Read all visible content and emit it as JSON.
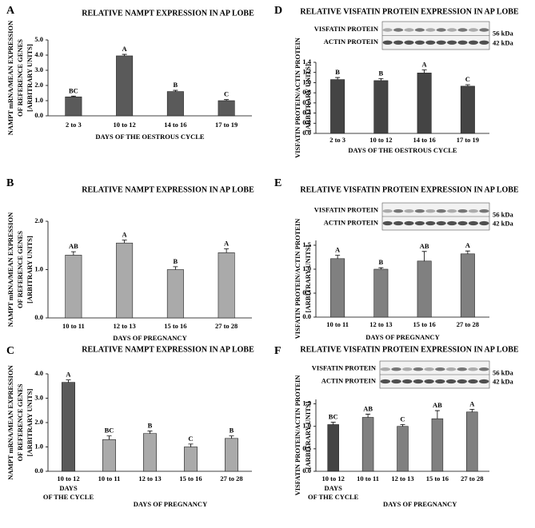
{
  "chart_data": [
    {
      "type": "bar",
      "panel": "A",
      "title": "RELATIVE NAMPT EXPRESSION IN AP LOBE",
      "ylabel_lines": [
        "NAMPT mRNA/MEAN EXPRESSION",
        "OF REFERENCE GENES",
        "[ARBITRARY UNITS]"
      ],
      "xlabel": "DAYS OF THE OESTROUS CYCLE",
      "categories": [
        "2 to 3",
        "10 to 12",
        "14 to 16",
        "17 to 19"
      ],
      "values": [
        1.25,
        3.95,
        1.6,
        1.0
      ],
      "errors": [
        0.05,
        0.1,
        0.08,
        0.07
      ],
      "letters": [
        "BC",
        "A",
        "B",
        "C"
      ],
      "color": "#5a5a5a",
      "ylim": [
        0,
        5
      ],
      "yticks": [
        {
          "value": 0,
          "label": "0.0"
        },
        {
          "value": 1,
          "label": "1.0"
        },
        {
          "value": 2,
          "label": "2.0"
        },
        {
          "value": 3,
          "label": "3.0"
        },
        {
          "value": 4,
          "label": "4.0"
        },
        {
          "value": 5,
          "label": "5.0"
        }
      ]
    },
    {
      "type": "bar",
      "panel": "B",
      "title": "RELATIVE NAMPT EXPRESSION IN AP LOBE",
      "ylabel_lines": [
        "NAMPT mRNA/MEAN EXPRESSION",
        "OF REFERENCE GENES",
        "[ARBITRARY UNITS]"
      ],
      "xlabel": "DAYS OF PREGNANCY",
      "categories": [
        "10 to 11",
        "12 to 13",
        "15 to 16",
        "27 to 28"
      ],
      "values": [
        1.3,
        1.55,
        1.0,
        1.35
      ],
      "errors": [
        0.07,
        0.06,
        0.06,
        0.08
      ],
      "letters": [
        "AB",
        "A",
        "B",
        "A"
      ],
      "color": "#aaaaaa",
      "ylim": [
        0,
        2
      ],
      "yticks": [
        {
          "value": 0,
          "label": "0.0"
        },
        {
          "value": 1,
          "label": "1.0"
        },
        {
          "value": 2,
          "label": "2.0"
        }
      ]
    },
    {
      "type": "bar",
      "panel": "C",
      "title": "RELATIVE NAMPT EXPRESSION IN AP LOBE",
      "ylabel_lines": [
        "NAMPT mRNA/MEAN EXPRESSION",
        "OF REFERENCE GENES",
        "[ARBITRARY UNITS]"
      ],
      "categories": [
        "10 to 12",
        "10 to 11",
        "12 to 13",
        "15 to 16",
        "27 to 28"
      ],
      "x_groups": [
        {
          "label_lines": [
            "DAYS",
            "OF THE CYCLE"
          ],
          "count": 1
        },
        {
          "label_lines": [
            "DAYS OF PREGNANCY"
          ],
          "count": 4
        }
      ],
      "values": [
        3.65,
        1.3,
        1.55,
        1.0,
        1.35
      ],
      "errors": [
        0.1,
        0.15,
        0.1,
        0.12,
        0.1
      ],
      "letters": [
        "A",
        "BC",
        "B",
        "C",
        "B"
      ],
      "colors": [
        "#5a5a5a",
        "#aaaaaa",
        "#aaaaaa",
        "#aaaaaa",
        "#aaaaaa"
      ],
      "ylim": [
        0,
        4
      ],
      "yticks": [
        {
          "value": 0,
          "label": "0.0"
        },
        {
          "value": 1,
          "label": "1.0"
        },
        {
          "value": 2,
          "label": "2.0"
        },
        {
          "value": 3,
          "label": "3.0"
        },
        {
          "value": 4,
          "label": "4.0"
        }
      ]
    },
    {
      "type": "bar",
      "panel": "D",
      "title": "RELATIVE VISFATIN PROTEIN EXPRESSION IN AP LOBE",
      "ylabel_lines": [
        "VISFATIN PROTEIN/ACTIN PROTEIN",
        "[ARBITRARY UNITS]"
      ],
      "xlabel": "DAYS OF THE OESTROUS CYCLE",
      "blot_labels": [
        "VISFATIN PROTEIN",
        "ACTIN PROTEIN"
      ],
      "kda_labels": [
        "56 kDa",
        "42 kDa"
      ],
      "categories": [
        "2 to 3",
        "10 to 12",
        "14 to 16",
        "17 to 19"
      ],
      "values": [
        1.06,
        1.04,
        1.19,
        0.93
      ],
      "errors": [
        0.04,
        0.04,
        0.06,
        0.03
      ],
      "letters": [
        "B",
        "B",
        "A",
        "C"
      ],
      "color": "#444444",
      "ylim": [
        0,
        1.4
      ],
      "yticks": [
        {
          "value": 0,
          "label": "0.0"
        },
        0.2,
        0.4,
        0.6,
        0.8,
        {
          "value": 1,
          "label": "1.0"
        },
        1.2,
        1.4
      ]
    },
    {
      "type": "bar",
      "panel": "E",
      "title": "RELATIVE VISFATIN PROTEIN EXPRESSION IN AP LOBE",
      "ylabel_lines": [
        "VISFATIN PROTEIN/ACTIN PROTEIN",
        "[ARBITRARY UNITS]"
      ],
      "xlabel": "DAYS OF PREGNANCY",
      "blot_labels": [
        "VISFATIN PROTEIN",
        "ACTIN PROTEIN"
      ],
      "kda_labels": [
        "56 kDa",
        "42 kDa"
      ],
      "categories": [
        "10 to 11",
        "12 to 13",
        "15 to 16",
        "27 to 28"
      ],
      "values": [
        1.22,
        1.0,
        1.17,
        1.32
      ],
      "errors": [
        0.07,
        0.03,
        0.2,
        0.06
      ],
      "letters": [
        "A",
        "B",
        "AB",
        "A"
      ],
      "color": "#808080",
      "ylim": [
        0,
        1.6
      ],
      "yticks": [
        {
          "value": 0,
          "label": "0.0"
        },
        0.5,
        {
          "value": 1,
          "label": "1.0"
        },
        1.5
      ]
    },
    {
      "type": "bar",
      "panel": "F",
      "title": "RELATIVE VISFATIN PROTEIN EXPRESSION IN AP LOBE",
      "ylabel_lines": [
        "VISFATIN PROTEIN/ACTIN PROTEIN",
        "[ARBITRARY UNITS]"
      ],
      "blot_labels": [
        "VISFATIN PROTEIN",
        "ACTIN PROTEIN"
      ],
      "kda_labels": [
        "56 kDa",
        "42 kDa"
      ],
      "categories": [
        "10 to 12",
        "10 to 11",
        "12 to 13",
        "15 to 16",
        "27 to 28"
      ],
      "x_groups": [
        {
          "label_lines": [
            "DAYS",
            "OF THE CYCLE"
          ],
          "count": 1
        },
        {
          "label_lines": [
            "DAYS OF PREGNANCY"
          ],
          "count": 4
        }
      ],
      "values": [
        1.04,
        1.2,
        1.0,
        1.17,
        1.32
      ],
      "errors": [
        0.05,
        0.07,
        0.04,
        0.18,
        0.06
      ],
      "letters": [
        "BC",
        "AB",
        "C",
        "AB",
        "A"
      ],
      "colors": [
        "#444444",
        "#808080",
        "#808080",
        "#808080",
        "#808080"
      ],
      "ylim": [
        0,
        1.6
      ],
      "yticks": [
        {
          "value": 0,
          "label": "0.0"
        },
        0.5,
        {
          "value": 1,
          "label": "1.0"
        },
        1.5
      ]
    }
  ]
}
